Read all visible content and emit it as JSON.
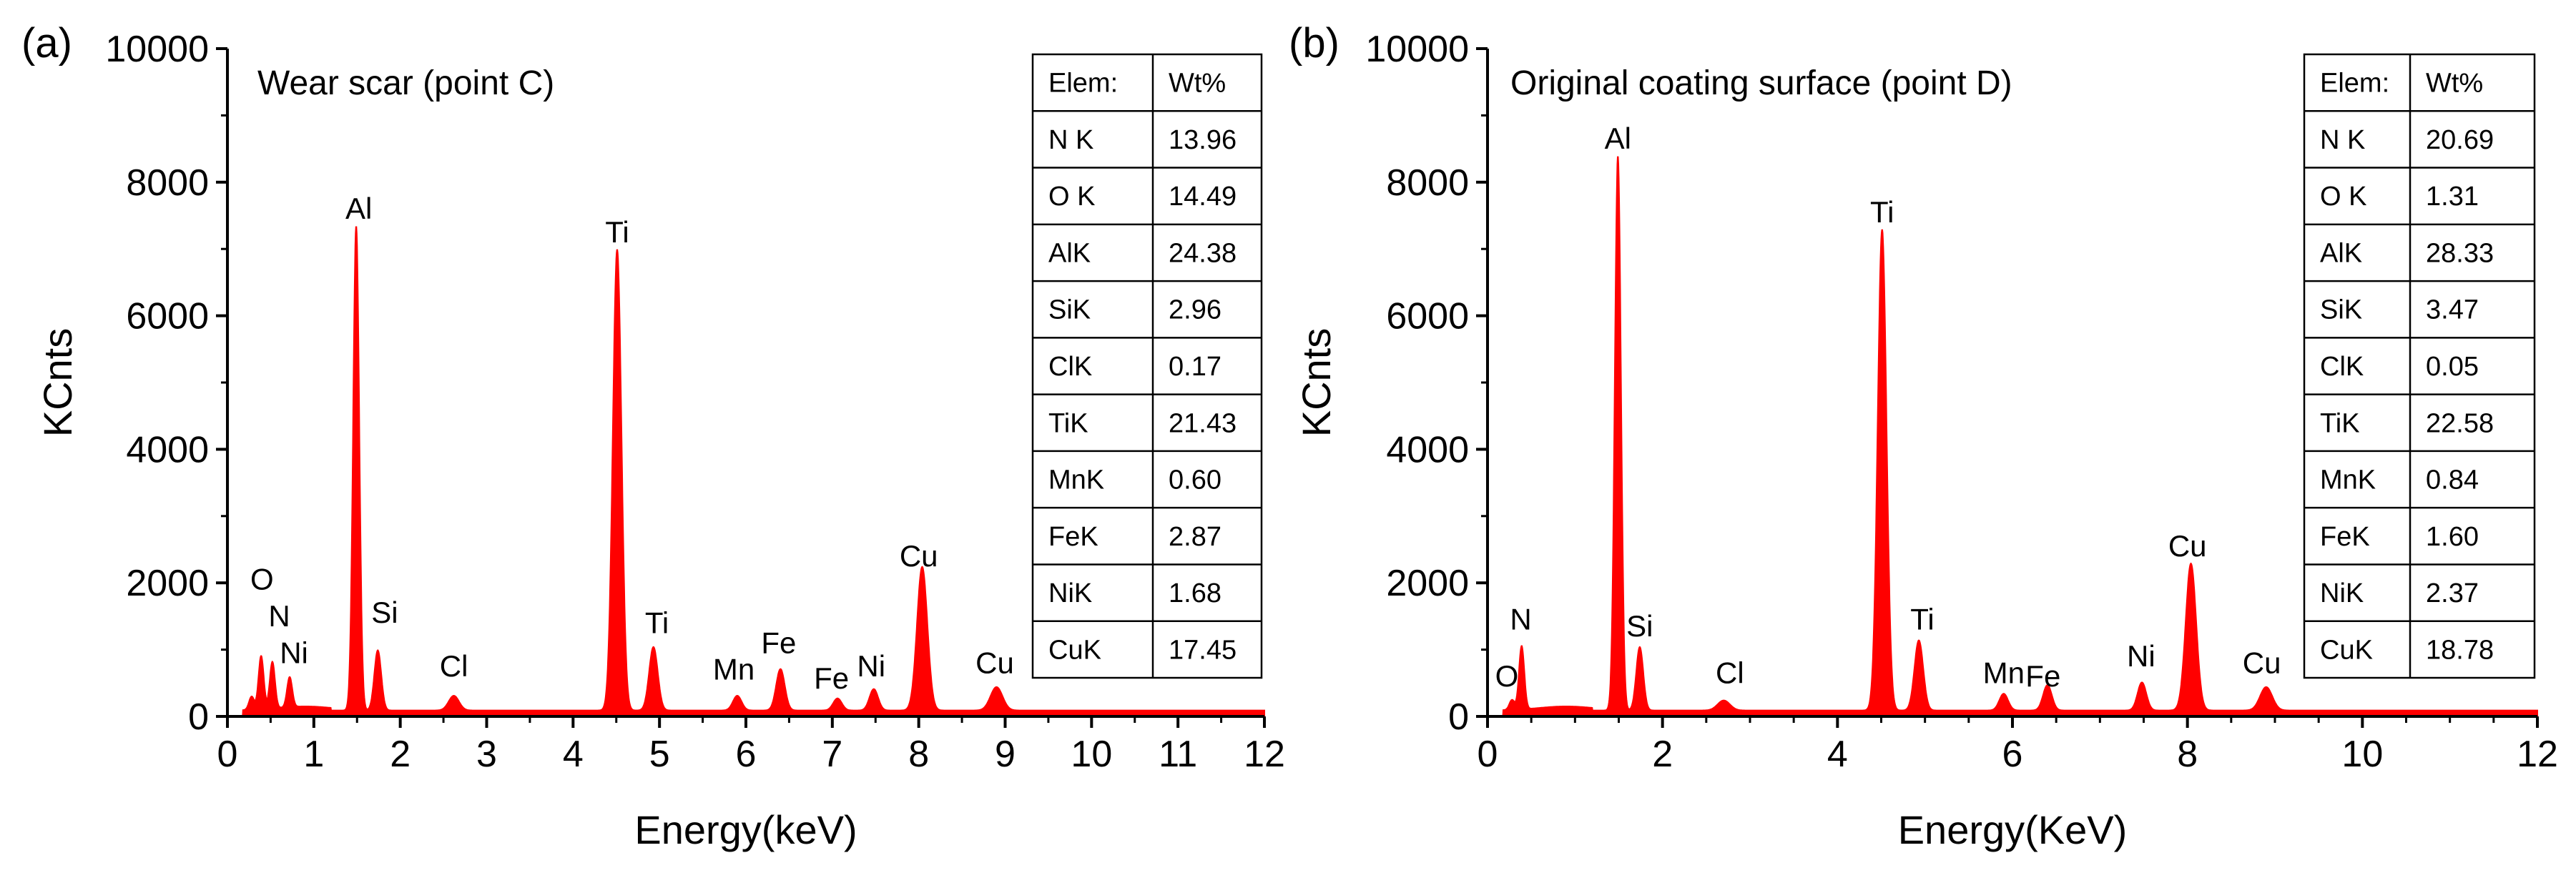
{
  "chart_data": [
    {
      "type": "line",
      "panel_label": "(a)",
      "title": "Wear scar (point C)",
      "xlabel": "Energy(keV)",
      "ylabel": "KCnts",
      "xlim": [
        0,
        12
      ],
      "ylim": [
        0,
        10000
      ],
      "xticks": [
        "0",
        "1",
        "2",
        "3",
        "4",
        "5",
        "6",
        "7",
        "8",
        "9",
        "10",
        "11",
        "12"
      ],
      "yticks": [
        "0",
        "2000",
        "4000",
        "6000",
        "8000",
        "10000"
      ],
      "series": [
        {
          "name": "EDS spectrum",
          "color": "#ff0000",
          "peaks": [
            {
              "energy": 0.28,
              "counts": 200,
              "width": 0.03
            },
            {
              "energy": 0.39,
              "counts": 800,
              "width": 0.03
            },
            {
              "energy": 0.52,
              "counts": 700,
              "width": 0.03
            },
            {
              "energy": 0.72,
              "counts": 450,
              "width": 0.03
            },
            {
              "energy": 1.49,
              "counts": 7250,
              "width": 0.035
            },
            {
              "energy": 1.74,
              "counts": 900,
              "width": 0.04
            },
            {
              "energy": 2.62,
              "counts": 220,
              "width": 0.06
            },
            {
              "energy": 4.51,
              "counts": 6900,
              "width": 0.05
            },
            {
              "energy": 4.93,
              "counts": 950,
              "width": 0.05
            },
            {
              "energy": 5.9,
              "counts": 220,
              "width": 0.05
            },
            {
              "energy": 6.4,
              "counts": 620,
              "width": 0.05
            },
            {
              "energy": 7.06,
              "counts": 180,
              "width": 0.05
            },
            {
              "energy": 7.48,
              "counts": 320,
              "width": 0.05
            },
            {
              "energy": 8.04,
              "counts": 2150,
              "width": 0.06
            },
            {
              "energy": 8.9,
              "counts": 350,
              "width": 0.07
            }
          ]
        }
      ],
      "annotations": [
        {
          "text": "O",
          "x": 0.4,
          "y": 1900
        },
        {
          "text": "N",
          "x": 0.6,
          "y": 1350
        },
        {
          "text": "Ni",
          "x": 0.77,
          "y": 800
        },
        {
          "text": "Al",
          "x": 1.52,
          "y": 7450
        },
        {
          "text": "Si",
          "x": 1.82,
          "y": 1400
        },
        {
          "text": "Cl",
          "x": 2.62,
          "y": 600
        },
        {
          "text": "Ti",
          "x": 4.51,
          "y": 7100
        },
        {
          "text": "Ti",
          "x": 4.97,
          "y": 1250
        },
        {
          "text": "Mn",
          "x": 5.86,
          "y": 550
        },
        {
          "text": "Fe",
          "x": 6.38,
          "y": 950
        },
        {
          "text": "Fe",
          "x": 6.99,
          "y": 420
        },
        {
          "text": "Ni",
          "x": 7.45,
          "y": 600
        },
        {
          "text": "Cu",
          "x": 8.0,
          "y": 2250
        },
        {
          "text": "Cu",
          "x": 8.88,
          "y": 650
        }
      ],
      "table": {
        "headers": [
          "Elem:",
          "Wt%"
        ],
        "rows": [
          [
            "N K",
            "13.96"
          ],
          [
            "O K",
            "14.49"
          ],
          [
            "AlK",
            "24.38"
          ],
          [
            "SiK",
            "2.96"
          ],
          [
            "ClK",
            "0.17"
          ],
          [
            "TiK",
            "21.43"
          ],
          [
            "MnK",
            "0.60"
          ],
          [
            "FeK",
            "2.87"
          ],
          [
            "NiK",
            "1.68"
          ],
          [
            "CuK",
            "17.45"
          ]
        ]
      }
    },
    {
      "type": "line",
      "panel_label": "(b)",
      "title": "Original coating surface (point D)",
      "xlabel": "Energy(KeV)",
      "ylabel": "KCnts",
      "xlim": [
        0,
        12
      ],
      "ylim": [
        0,
        10000
      ],
      "xticks": [
        "0",
        "2",
        "4",
        "6",
        "8",
        "10",
        "12"
      ],
      "yticks": [
        "0",
        "2000",
        "4000",
        "6000",
        "8000",
        "10000"
      ],
      "series": [
        {
          "name": "EDS spectrum",
          "color": "#ff0000",
          "peaks": [
            {
              "energy": 0.28,
              "counts": 150,
              "width": 0.03
            },
            {
              "energy": 0.39,
              "counts": 950,
              "width": 0.03
            },
            {
              "energy": 1.49,
              "counts": 8300,
              "width": 0.035
            },
            {
              "energy": 1.74,
              "counts": 950,
              "width": 0.04
            },
            {
              "energy": 2.7,
              "counts": 150,
              "width": 0.07
            },
            {
              "energy": 4.51,
              "counts": 7200,
              "width": 0.05
            },
            {
              "energy": 4.93,
              "counts": 1050,
              "width": 0.05
            },
            {
              "energy": 5.9,
              "counts": 250,
              "width": 0.05
            },
            {
              "energy": 6.4,
              "counts": 380,
              "width": 0.05
            },
            {
              "energy": 7.48,
              "counts": 420,
              "width": 0.05
            },
            {
              "energy": 8.04,
              "counts": 2200,
              "width": 0.06
            },
            {
              "energy": 8.9,
              "counts": 350,
              "width": 0.07
            }
          ]
        }
      ],
      "annotations": [
        {
          "text": "N",
          "x": 0.38,
          "y": 1300
        },
        {
          "text": "O",
          "x": 0.22,
          "y": 450
        },
        {
          "text": "Al",
          "x": 1.49,
          "y": 8500
        },
        {
          "text": "Si",
          "x": 1.74,
          "y": 1200
        },
        {
          "text": "Cl",
          "x": 2.77,
          "y": 500
        },
        {
          "text": "Ti",
          "x": 4.51,
          "y": 7400
        },
        {
          "text": "Ti",
          "x": 4.97,
          "y": 1300
        },
        {
          "text": "Mn",
          "x": 5.9,
          "y": 500
        },
        {
          "text": "Fe",
          "x": 6.35,
          "y": 450
        },
        {
          "text": "Ni",
          "x": 7.47,
          "y": 750
        },
        {
          "text": "Cu",
          "x": 8.0,
          "y": 2400
        },
        {
          "text": "Cu",
          "x": 8.85,
          "y": 650
        }
      ],
      "table": {
        "headers": [
          "Elem:",
          "Wt%"
        ],
        "rows": [
          [
            "N K",
            "20.69"
          ],
          [
            "O K",
            "1.31"
          ],
          [
            "AlK",
            "28.33"
          ],
          [
            "SiK",
            "3.47"
          ],
          [
            "ClK",
            "0.05"
          ],
          [
            "TiK",
            "22.58"
          ],
          [
            "MnK",
            "0.84"
          ],
          [
            "FeK",
            "1.60"
          ],
          [
            "NiK",
            "2.37"
          ],
          [
            "CuK",
            "18.78"
          ]
        ]
      }
    }
  ]
}
